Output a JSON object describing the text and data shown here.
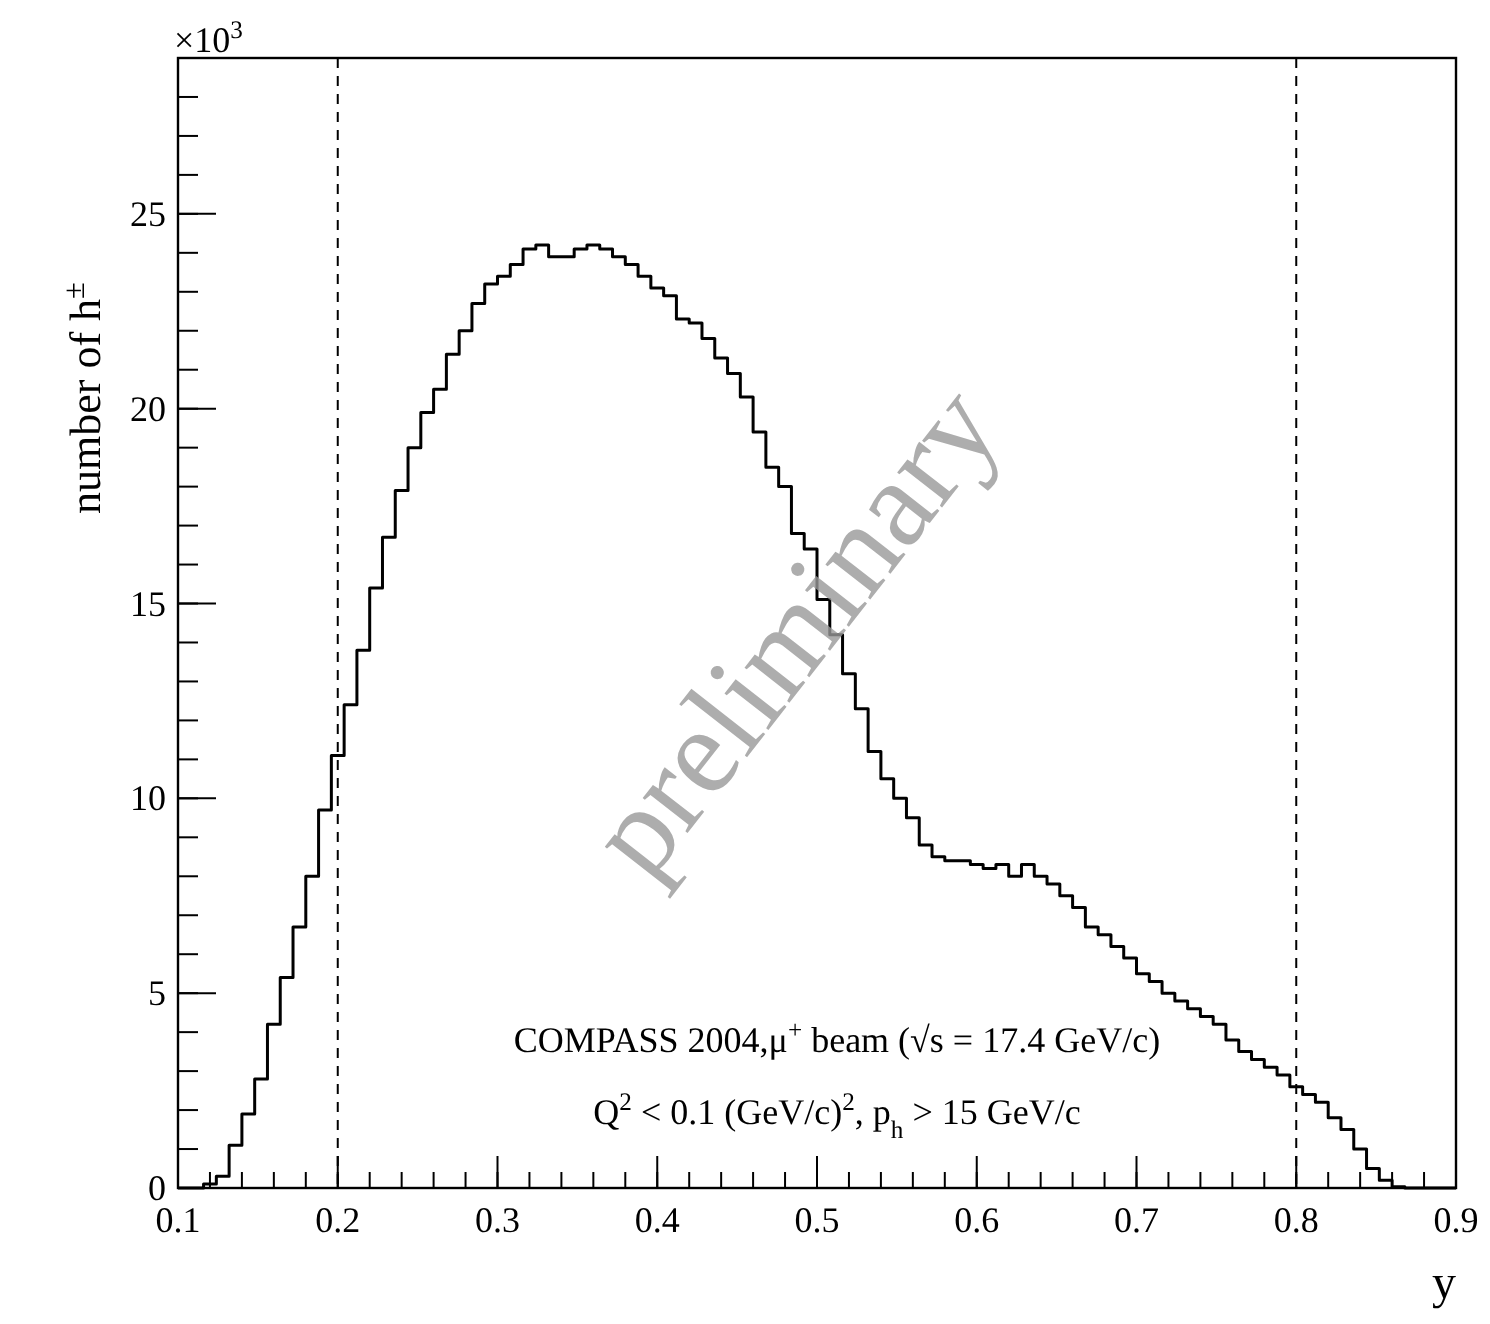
{
  "chart_data": {
    "type": "histogram",
    "xlabel": "y",
    "ylabel": "number of h$^{±}$",
    "bins": [
      0.1,
      0.108,
      0.116,
      0.124,
      0.132,
      0.14,
      0.148,
      0.156,
      0.164,
      0.172,
      0.18,
      0.188,
      0.196,
      0.204,
      0.212,
      0.22,
      0.228,
      0.236,
      0.244,
      0.252,
      0.26,
      0.268,
      0.276,
      0.284,
      0.292,
      0.3,
      0.308,
      0.316,
      0.324,
      0.332,
      0.34,
      0.348,
      0.356,
      0.364,
      0.372,
      0.38,
      0.388,
      0.396,
      0.404,
      0.412,
      0.42,
      0.428,
      0.436,
      0.444,
      0.452,
      0.46,
      0.468,
      0.476,
      0.484,
      0.492,
      0.5,
      0.508,
      0.516,
      0.524,
      0.532,
      0.54,
      0.548,
      0.556,
      0.564,
      0.572,
      0.58,
      0.588,
      0.596,
      0.604,
      0.612,
      0.62,
      0.628,
      0.636,
      0.644,
      0.652,
      0.66,
      0.668,
      0.676,
      0.684,
      0.692,
      0.7,
      0.708,
      0.716,
      0.724,
      0.732,
      0.74,
      0.748,
      0.756,
      0.764,
      0.772,
      0.78,
      0.788,
      0.796,
      0.804,
      0.812,
      0.82,
      0.828,
      0.836,
      0.844,
      0.852,
      0.86,
      0.868,
      0.876,
      0.884,
      0.892,
      0.9
    ],
    "values": [
      0,
      0,
      0.1,
      0.3,
      1.1,
      1.9,
      2.8,
      4.2,
      5.4,
      6.7,
      8.0,
      9.7,
      11.1,
      12.4,
      13.8,
      15.4,
      16.7,
      17.9,
      19.0,
      19.9,
      20.5,
      21.4,
      22.0,
      22.7,
      23.2,
      23.4,
      23.7,
      24.1,
      24.2,
      23.9,
      23.9,
      24.1,
      24.2,
      24.1,
      23.9,
      23.7,
      23.4,
      23.1,
      22.9,
      22.3,
      22.2,
      21.8,
      21.3,
      20.9,
      20.3,
      19.4,
      18.5,
      18.0,
      16.8,
      16.4,
      15.1,
      14.2,
      13.2,
      12.3,
      11.2,
      10.5,
      10.0,
      9.5,
      8.8,
      8.5,
      8.4,
      8.4,
      8.3,
      8.2,
      8.3,
      8.0,
      8.3,
      8.0,
      7.8,
      7.5,
      7.2,
      6.7,
      6.5,
      6.2,
      5.9,
      5.5,
      5.3,
      5.0,
      4.8,
      4.6,
      4.4,
      4.2,
      3.8,
      3.5,
      3.3,
      3.1,
      2.9,
      2.6,
      2.4,
      2.2,
      1.8,
      1.5,
      1.0,
      0.5,
      0.2,
      0.03,
      0,
      0,
      0,
      0
    ],
    "color": "#000000",
    "xlim": [
      0.1,
      0.9
    ],
    "xticks": [
      0.1,
      0.2,
      0.3,
      0.4,
      0.5,
      0.6,
      0.7,
      0.8,
      0.9
    ],
    "ylim": [
      0,
      29
    ],
    "yticks": [
      0,
      5,
      10,
      15,
      20,
      25
    ],
    "ref_lines": [
      {
        "axis": "x",
        "value": 0.2,
        "line_style": "dashed"
      },
      {
        "axis": "x",
        "value": 0.8,
        "line_style": "dashed"
      }
    ],
    "annotations": [
      "×10$^{3}$",
      "COMPASS 2004,μ$^{+}$ beam (√s = 17.4 GeV/c)",
      "Q$^{2}$ < 0.1 (GeV/c)$^{2}$, p$_{h}$ > 15 GeV/c",
      "preliminary"
    ]
  }
}
